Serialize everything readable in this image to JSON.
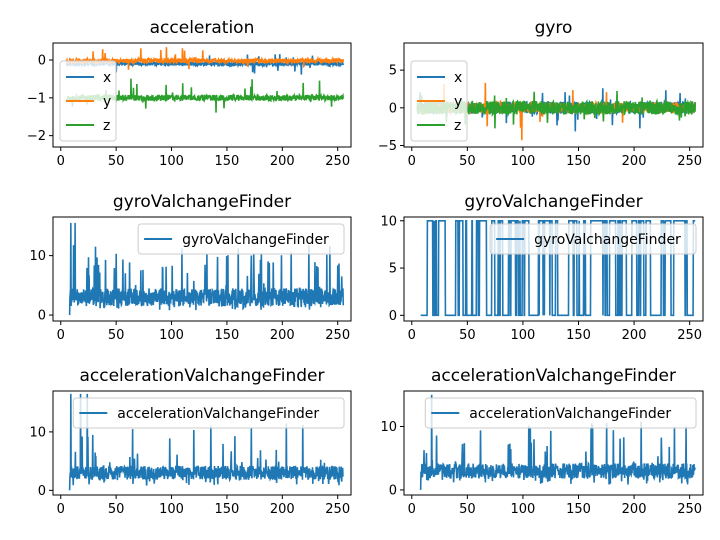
{
  "figure": {
    "background": "#ffffff"
  },
  "chart_data": [
    {
      "type": "line",
      "title": "acceleration",
      "xlim": [
        -7,
        262
      ],
      "ylim": [
        -2.3,
        0.45
      ],
      "xticks": [
        0,
        50,
        100,
        150,
        200,
        250
      ],
      "yticks": [
        -2,
        -1,
        0
      ],
      "x_start": 5,
      "x_end": 255,
      "legend": "left",
      "series": [
        {
          "name": "x",
          "color": "#1f77b4",
          "base": -0.1,
          "noise": 0.05,
          "spike_prob": 0.02,
          "spike_amp": 0.3,
          "seed": 11
        },
        {
          "name": "y",
          "color": "#ff7f0e",
          "base": -0.02,
          "noise": 0.06,
          "spike_prob": 0.02,
          "spike_amp": 0.35,
          "seed": 23
        },
        {
          "name": "z",
          "color": "#2ca02c",
          "base": -1.0,
          "noise": 0.08,
          "spike_prob": 0.03,
          "spike_amp": 0.5,
          "seed": 37
        }
      ]
    },
    {
      "type": "line",
      "title": "gyro",
      "xlim": [
        -7,
        262
      ],
      "ylim": [
        -5.2,
        8.6
      ],
      "xticks": [
        0,
        50,
        100,
        150,
        200,
        250
      ],
      "yticks": [
        -5,
        0,
        5
      ],
      "x_start": 5,
      "x_end": 255,
      "legend": "left",
      "series": [
        {
          "name": "x",
          "color": "#1f77b4",
          "base": 0,
          "noise": 0.8,
          "spike_prob": 0.03,
          "spike_amp": 3,
          "seed": 41
        },
        {
          "name": "y",
          "color": "#ff7f0e",
          "base": 0,
          "noise": 0.7,
          "spike_prob": 0.03,
          "spike_amp": 4,
          "seed": 53
        },
        {
          "name": "z",
          "color": "#2ca02c",
          "base": 0,
          "noise": 0.9,
          "spike_prob": 0.03,
          "spike_amp": 2,
          "seed": 67
        }
      ]
    },
    {
      "type": "line",
      "title": "gyroValchangeFinder",
      "xlim": [
        -7,
        262
      ],
      "ylim": [
        -1,
        16.5
      ],
      "xticks": [
        0,
        50,
        100,
        150,
        200,
        250
      ],
      "yticks": [
        0,
        10
      ],
      "x_start": 8,
      "x_end": 255,
      "legend": "top-right",
      "series": [
        {
          "name": "gyroValchangeFinder",
          "color": "#1f77b4",
          "base": 3,
          "noise": 1.5,
          "spike_prob": 0.12,
          "spike_amp": 9,
          "start_value": 0,
          "peak_at": [
            9,
            13
          ],
          "peak_value": 15.5,
          "seed": 71
        }
      ]
    },
    {
      "type": "line",
      "title": "gyroValchangeFinder",
      "xlim": [
        -7,
        262
      ],
      "ylim": [
        -0.6,
        10.4
      ],
      "xticks": [
        0,
        50,
        100,
        150,
        200,
        250
      ],
      "yticks": [
        0,
        5,
        10
      ],
      "x_start": 8,
      "x_end": 255,
      "legend": "top-right",
      "mode": "binary",
      "low": 0,
      "high": 10,
      "toggle_prob": 0.35,
      "series": [
        {
          "name": "gyroValchangeFinder",
          "color": "#1f77b4",
          "seed": 83
        }
      ]
    },
    {
      "type": "line",
      "title": "accelerationValchangeFinder",
      "xlim": [
        -7,
        262
      ],
      "ylim": [
        -0.8,
        17
      ],
      "xticks": [
        0,
        50,
        100,
        150,
        200,
        250
      ],
      "yticks": [
        0,
        10
      ],
      "x_start": 8,
      "x_end": 255,
      "legend": "top-right",
      "series": [
        {
          "name": "accelerationValchangeFinder",
          "color": "#1f77b4",
          "base": 3,
          "noise": 1.2,
          "spike_prob": 0.09,
          "spike_amp": 8,
          "start_value": 0,
          "peak_at": [
            9,
            18,
            24
          ],
          "peak_value": 16.5,
          "seed": 97
        }
      ]
    },
    {
      "type": "line",
      "title": "accelerationValchangeFinder",
      "xlim": [
        -7,
        262
      ],
      "ylim": [
        -0.8,
        15.6
      ],
      "xticks": [
        0,
        50,
        100,
        150,
        200,
        250
      ],
      "yticks": [
        0,
        10
      ],
      "x_start": 8,
      "x_end": 255,
      "legend": "top-right",
      "series": [
        {
          "name": "accelerationValchangeFinder",
          "color": "#1f77b4",
          "base": 3,
          "noise": 1.2,
          "spike_prob": 0.08,
          "spike_amp": 8,
          "start_value": 0,
          "peak_at": [
            18
          ],
          "peak_value": 15,
          "seed": 109
        }
      ]
    }
  ]
}
